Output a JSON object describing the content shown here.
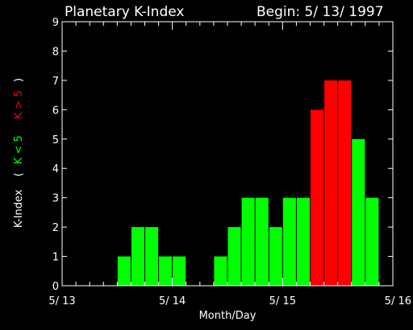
{
  "chart_data": {
    "type": "bar",
    "title": "Planetary K-Index",
    "begin_label": "Begin: 5/ 13/ 1997",
    "xlabel": "Month/Day",
    "ylabel": {
      "prefix": "K-Index",
      "open_paren": "(",
      "low_part": "K < 5",
      "high_part": "K > 5",
      "close_paren": ")"
    },
    "ylim": [
      0,
      9
    ],
    "yticks": [
      0,
      1,
      2,
      3,
      4,
      5,
      6,
      7,
      8,
      9
    ],
    "x_day_range": [
      0,
      3
    ],
    "xtick_labels": [
      "5/ 13",
      "5/ 14",
      "5/ 15",
      "5/ 16"
    ],
    "bins_per_day": 8,
    "values": [
      0,
      0,
      0,
      0,
      1,
      2,
      2,
      1,
      1,
      0,
      0,
      1,
      2,
      3,
      3,
      2,
      3,
      3,
      6,
      7,
      7,
      5,
      3,
      0
    ],
    "threshold": 5,
    "colors": {
      "background": "#000000",
      "axes": "#ffffff",
      "text": "#ffffff",
      "low": "#00ff00",
      "high": "#ff0000"
    }
  }
}
